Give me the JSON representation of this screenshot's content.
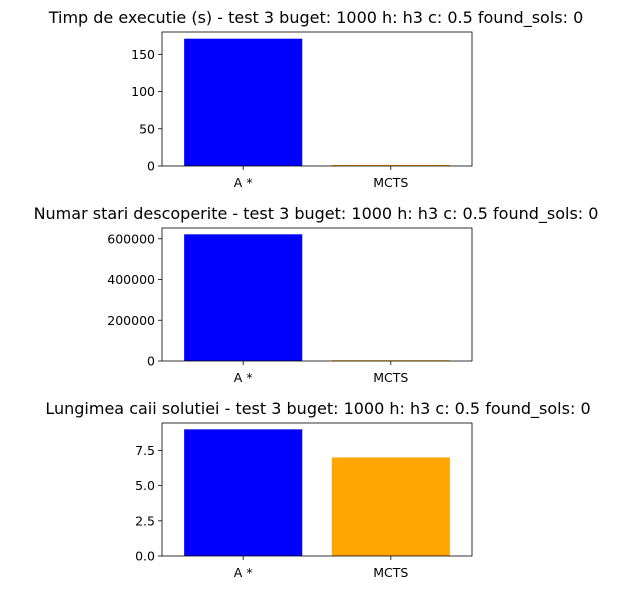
{
  "chart_data": [
    {
      "type": "bar",
      "title": "Timp de executie (s) - test 3   buget: 1000  h: h3  c: 0.5  found_sols: 0",
      "categories": [
        "A *",
        "MCTS"
      ],
      "values": [
        171,
        1.5
      ],
      "colors": [
        "#0000ff",
        "#ffa500"
      ],
      "ylim": [
        0,
        180
      ],
      "yticks": [
        0,
        50,
        100,
        150
      ],
      "ytick_labels": [
        "0",
        "50",
        "100",
        "150"
      ],
      "grid": false
    },
    {
      "type": "bar",
      "title": "Numar stari descoperite - test 3   buget: 1000  h: h3  c: 0.5  found_sols: 0",
      "categories": [
        "A *",
        "MCTS"
      ],
      "values": [
        622000,
        300
      ],
      "colors": [
        "#0000ff",
        "#ffa500"
      ],
      "ylim": [
        0,
        653000
      ],
      "yticks": [
        0,
        200000,
        400000,
        600000
      ],
      "ytick_labels": [
        "0",
        "200000",
        "400000",
        "600000"
      ],
      "grid": false
    },
    {
      "type": "bar",
      "title": "Lungimea caii solutiei - test 3   buget: 1000  h: h3  c: 0.5  found_sols: 0",
      "categories": [
        "A *",
        "MCTS"
      ],
      "values": [
        9,
        7
      ],
      "colors": [
        "#0000ff",
        "#ffa500"
      ],
      "ylim": [
        0,
        9.45
      ],
      "yticks": [
        0,
        2.5,
        5.0,
        7.5
      ],
      "ytick_labels": [
        "0.0",
        "2.5",
        "5.0",
        "7.5"
      ],
      "grid": false
    }
  ]
}
